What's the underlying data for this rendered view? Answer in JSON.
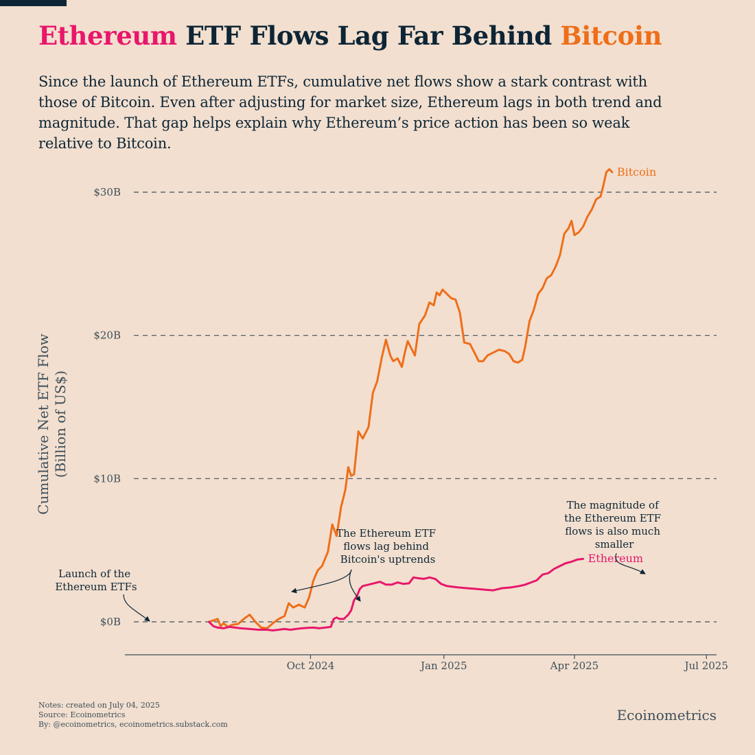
{
  "title": {
    "part1": "Ethereum",
    "part2": " ETF Flows Lag Far Behind ",
    "part3": "Bitcoin"
  },
  "subtitle": "Since the launch of Ethereum ETFs, cumulative net flows show a stark contrast with those of Bitcoin. Even after adjusting for market size, Ethereum lags in both trend and magnitude. That gap helps explain why Ethereum’s price action has been so weak relative to Bitcoin.",
  "notes": {
    "line1": "Notes: created on July 04, 2025",
    "line2": "Source: Ecoinometrics",
    "line3": "By: @ecoinometrics, ecoinometrics.substack.com"
  },
  "brand": "Ecoinometrics",
  "colors": {
    "background": "#f2dfcf",
    "bitcoin": "#ee6e1a",
    "ethereum": "#e8176b",
    "text": "#0d2535",
    "axis": "#3d4e5a"
  },
  "chart_data": {
    "type": "line",
    "title": "Ethereum ETF Flows Lag Far Behind Bitcoin",
    "xlabel": "",
    "ylabel": "Cumulative Net ETF Flow\n(Billion of US$)",
    "ylabel_line1": "Cumulative Net ETF Flow",
    "ylabel_line2": "(Billion of US$)",
    "x_unit": "days since 2024-07-23 (Ethereum ETF launch)",
    "xlim": [
      -58,
      350
    ],
    "ylim": [
      -2.3,
      30
    ],
    "x_ticks": [
      {
        "x": 70,
        "label": "Oct 2024"
      },
      {
        "x": 162,
        "label": "Jan 2025"
      },
      {
        "x": 252,
        "label": "Apr 2025"
      },
      {
        "x": 343,
        "label": "Jul 2025"
      }
    ],
    "y_ticks": [
      {
        "y": 0,
        "label": "$0B"
      },
      {
        "y": 10,
        "label": "$10B"
      },
      {
        "y": 20,
        "label": "$20B"
      },
      {
        "y": 30,
        "label": "$30B"
      }
    ],
    "grid": true,
    "series": [
      {
        "name": "Bitcoin",
        "label": "Bitcoin",
        "color": "#ee6e1a",
        "points": [
          [
            0,
            0
          ],
          [
            3,
            0.1
          ],
          [
            6,
            0.2
          ],
          [
            8,
            -0.3
          ],
          [
            10,
            -0.1
          ],
          [
            13,
            -0.35
          ],
          [
            16,
            -0.2
          ],
          [
            20,
            -0.15
          ],
          [
            24,
            0.2
          ],
          [
            28,
            0.5
          ],
          [
            32,
            0
          ],
          [
            36,
            -0.4
          ],
          [
            40,
            -0.45
          ],
          [
            44,
            -0.1
          ],
          [
            48,
            0.2
          ],
          [
            52,
            0.4
          ],
          [
            55,
            1.3
          ],
          [
            58,
            1.0
          ],
          [
            62,
            1.2
          ],
          [
            66,
            1.0
          ],
          [
            69,
            1.7
          ],
          [
            72,
            2.9
          ],
          [
            75,
            3.6
          ],
          [
            78,
            3.9
          ],
          [
            82,
            4.9
          ],
          [
            85,
            6.8
          ],
          [
            88,
            6.0
          ],
          [
            91,
            8.0
          ],
          [
            94,
            9.2
          ],
          [
            96,
            10.8
          ],
          [
            98,
            10.2
          ],
          [
            100,
            10.3
          ],
          [
            103,
            13.3
          ],
          [
            106,
            12.8
          ],
          [
            110,
            13.6
          ],
          [
            113,
            16.0
          ],
          [
            116,
            16.8
          ],
          [
            119,
            18.4
          ],
          [
            122,
            19.7
          ],
          [
            125,
            18.6
          ],
          [
            127,
            18.2
          ],
          [
            130,
            18.4
          ],
          [
            133,
            17.8
          ],
          [
            135,
            18.8
          ],
          [
            137,
            19.6
          ],
          [
            140,
            19.0
          ],
          [
            142,
            18.6
          ],
          [
            145,
            20.8
          ],
          [
            149,
            21.4
          ],
          [
            152,
            22.3
          ],
          [
            155,
            22.1
          ],
          [
            157,
            23.0
          ],
          [
            159,
            22.8
          ],
          [
            161,
            23.2
          ],
          [
            164,
            22.9
          ],
          [
            167,
            22.6
          ],
          [
            170,
            22.5
          ],
          [
            173,
            21.6
          ],
          [
            176,
            19.5
          ],
          [
            180,
            19.4
          ],
          [
            183,
            18.8
          ],
          [
            186,
            18.2
          ],
          [
            189,
            18.2
          ],
          [
            192,
            18.6
          ],
          [
            196,
            18.8
          ],
          [
            200,
            19.0
          ],
          [
            204,
            18.9
          ],
          [
            207,
            18.7
          ],
          [
            210,
            18.2
          ],
          [
            213,
            18.1
          ],
          [
            216,
            18.3
          ],
          [
            218,
            19.2
          ],
          [
            221,
            21.0
          ],
          [
            224,
            21.8
          ],
          [
            227,
            22.9
          ],
          [
            230,
            23.3
          ],
          [
            233,
            24.0
          ],
          [
            236,
            24.2
          ],
          [
            239,
            24.8
          ],
          [
            242,
            25.6
          ],
          [
            245,
            27.1
          ],
          [
            248,
            27.5
          ],
          [
            250,
            28.0
          ],
          [
            252,
            27.0
          ],
          [
            255,
            27.2
          ],
          [
            258,
            27.6
          ],
          [
            261,
            28.3
          ],
          [
            264,
            28.8
          ],
          [
            267,
            29.5
          ],
          [
            270,
            29.7
          ],
          [
            272,
            30.5
          ],
          [
            274,
            31.4
          ],
          [
            276,
            31.6
          ],
          [
            278,
            31.4
          ]
        ]
      },
      {
        "name": "Ethereum",
        "label": "Ethereum",
        "color": "#e8176b",
        "points": [
          [
            0,
            0
          ],
          [
            3,
            -0.3
          ],
          [
            6,
            -0.4
          ],
          [
            10,
            -0.45
          ],
          [
            14,
            -0.35
          ],
          [
            18,
            -0.4
          ],
          [
            22,
            -0.45
          ],
          [
            28,
            -0.5
          ],
          [
            34,
            -0.55
          ],
          [
            40,
            -0.55
          ],
          [
            44,
            -0.6
          ],
          [
            48,
            -0.55
          ],
          [
            52,
            -0.5
          ],
          [
            56,
            -0.55
          ],
          [
            60,
            -0.5
          ],
          [
            64,
            -0.45
          ],
          [
            68,
            -0.42
          ],
          [
            72,
            -0.4
          ],
          [
            76,
            -0.45
          ],
          [
            80,
            -0.4
          ],
          [
            84,
            -0.35
          ],
          [
            86,
            0.2
          ],
          [
            88,
            0.3
          ],
          [
            90,
            0.2
          ],
          [
            93,
            0.2
          ],
          [
            96,
            0.5
          ],
          [
            98,
            0.8
          ],
          [
            100,
            1.5
          ],
          [
            102,
            1.8
          ],
          [
            104,
            2.3
          ],
          [
            106,
            2.5
          ],
          [
            110,
            2.6
          ],
          [
            114,
            2.7
          ],
          [
            118,
            2.8
          ],
          [
            122,
            2.6
          ],
          [
            126,
            2.6
          ],
          [
            130,
            2.75
          ],
          [
            134,
            2.65
          ],
          [
            138,
            2.7
          ],
          [
            141,
            3.1
          ],
          [
            144,
            3.05
          ],
          [
            148,
            3.0
          ],
          [
            152,
            3.1
          ],
          [
            156,
            3.0
          ],
          [
            160,
            2.65
          ],
          [
            164,
            2.5
          ],
          [
            168,
            2.45
          ],
          [
            172,
            2.4
          ],
          [
            178,
            2.35
          ],
          [
            184,
            2.3
          ],
          [
            190,
            2.25
          ],
          [
            196,
            2.2
          ],
          [
            202,
            2.35
          ],
          [
            208,
            2.4
          ],
          [
            214,
            2.5
          ],
          [
            218,
            2.6
          ],
          [
            222,
            2.75
          ],
          [
            226,
            2.9
          ],
          [
            230,
            3.3
          ],
          [
            234,
            3.4
          ],
          [
            238,
            3.7
          ],
          [
            242,
            3.9
          ],
          [
            246,
            4.1
          ],
          [
            250,
            4.2
          ],
          [
            254,
            4.35
          ],
          [
            258,
            4.4
          ]
        ]
      }
    ],
    "annotations": [
      {
        "id": "launch",
        "lines": [
          "Launch of the",
          "Ethereum ETFs"
        ]
      },
      {
        "id": "uptrends",
        "lines": [
          "The Ethereum ETF",
          "flows lag behind",
          "Bitcoin's uptrends"
        ]
      },
      {
        "id": "magnitude",
        "lines": [
          "The magnitude of",
          "the Ethereum ETF",
          "flows is also much",
          "smaller"
        ]
      }
    ]
  }
}
